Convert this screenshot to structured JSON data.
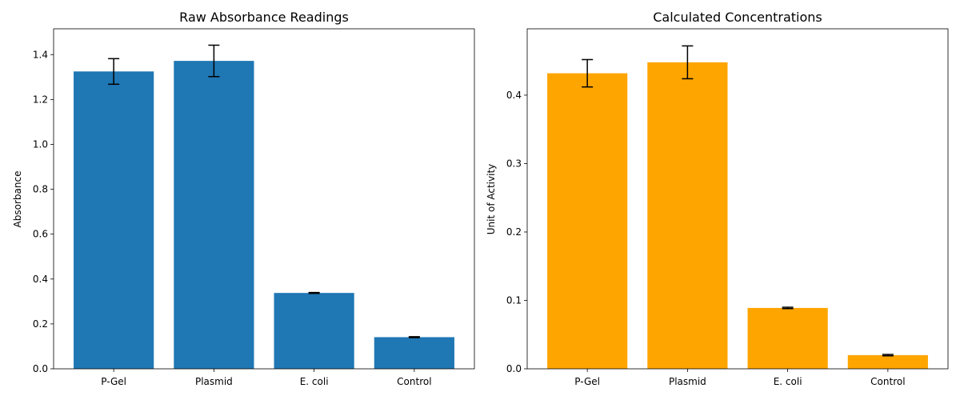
{
  "chart_data": [
    {
      "type": "bar",
      "title": "Raw Absorbance Readings",
      "xlabel": "",
      "ylabel": "Absorbance",
      "categories": [
        "P-Gel",
        "Plasmid",
        "E. coli",
        "Control"
      ],
      "values": [
        1.325,
        1.372,
        0.338,
        0.141
      ],
      "errors": [
        0.057,
        0.07,
        0.002,
        0.002
      ],
      "ylim": [
        0,
        1.515
      ],
      "yticks": [
        0.0,
        0.2,
        0.4,
        0.6,
        0.8,
        1.0,
        1.2,
        1.4
      ],
      "ytick_labels": [
        "0.0",
        "0.2",
        "0.4",
        "0.6",
        "0.8",
        "1.0",
        "1.2",
        "1.4"
      ],
      "color": "#1f77b4",
      "grid": false
    },
    {
      "type": "bar",
      "title": "Calculated Concentrations",
      "xlabel": "",
      "ylabel": "Unit of Activity",
      "categories": [
        "P-Gel",
        "Plasmid",
        "E. coli",
        "Control"
      ],
      "values": [
        0.432,
        0.448,
        0.089,
        0.02
      ],
      "errors": [
        0.02,
        0.024,
        0.001,
        0.001
      ],
      "ylim": [
        0,
        0.497
      ],
      "yticks": [
        0.0,
        0.1,
        0.2,
        0.3,
        0.4
      ],
      "ytick_labels": [
        "0.0",
        "0.1",
        "0.2",
        "0.3",
        "0.4"
      ],
      "color": "#ffa500",
      "grid": false
    }
  ]
}
